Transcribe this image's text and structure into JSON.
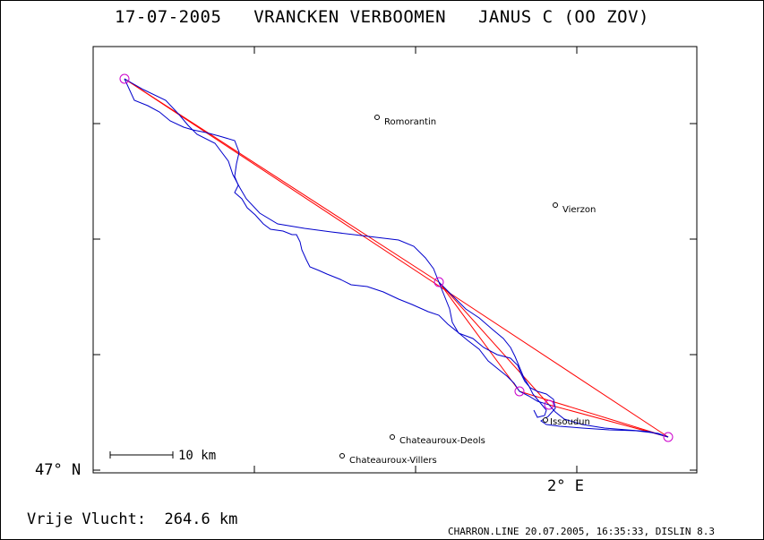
{
  "header": {
    "title": "17-07-2005   VRANCKEN VERBOOMEN   JANUS C (OO ZOV)"
  },
  "axes": {
    "lat_label": "47° N",
    "lon_label": "2° E"
  },
  "scale_bar": {
    "label": "10 km"
  },
  "places": [
    {
      "name": "Romorantin"
    },
    {
      "name": "Vierzon"
    },
    {
      "name": "Issoudun"
    },
    {
      "name": "Chateauroux-Deols"
    },
    {
      "name": "Chateauroux-Villers"
    }
  ],
  "summary": {
    "distance_text": "Vrije Vlucht:  264.6 km"
  },
  "footer": {
    "text": "CHARRON.LINE 20.07.2005, 16:35:33, DISLIN 8.3"
  },
  "colors": {
    "track": "#0000cc",
    "task": "#ff0000",
    "turnpoint": "#cc00cc",
    "frame": "#000000"
  }
}
